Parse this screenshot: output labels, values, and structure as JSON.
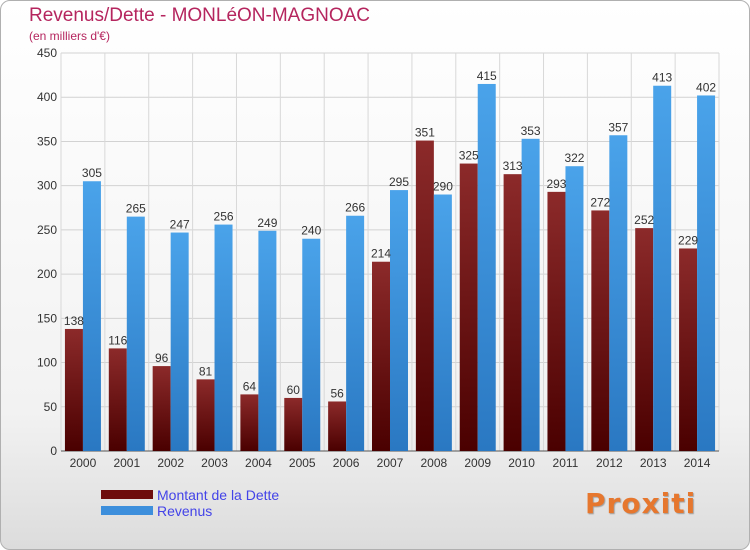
{
  "header": {
    "title": "Revenus/Dette - MONLéON-MAGNOAC",
    "subtitle": "(en milliers d'€)"
  },
  "logo": {
    "text": "Proxiti"
  },
  "colors": {
    "dette": "#6e0c0c",
    "revenus": "#3d8fdc",
    "title": "#b5255e",
    "legend_text": "#4343e8"
  },
  "chart_data": {
    "type": "bar",
    "title": "Revenus/Dette - MONLéON-MAGNOAC",
    "subtitle": "(en milliers d'€)",
    "xlabel": "",
    "ylabel": "",
    "ylim": [
      0,
      450
    ],
    "yticks": [
      0,
      50,
      100,
      150,
      200,
      250,
      300,
      350,
      400,
      450
    ],
    "grid": true,
    "legend_position": "bottom-left",
    "categories": [
      "2000",
      "2001",
      "2002",
      "2003",
      "2004",
      "2005",
      "2006",
      "2007",
      "2008",
      "2009",
      "2010",
      "2011",
      "2012",
      "2013",
      "2014"
    ],
    "series": [
      {
        "name": "Montant de la Dette",
        "values": [
          138,
          116,
          96,
          81,
          64,
          60,
          56,
          214,
          351,
          325,
          313,
          293,
          272,
          252,
          229
        ]
      },
      {
        "name": "Revenus",
        "values": [
          305,
          265,
          247,
          256,
          249,
          240,
          266,
          295,
          290,
          415,
          353,
          322,
          357,
          413,
          402
        ]
      }
    ]
  }
}
